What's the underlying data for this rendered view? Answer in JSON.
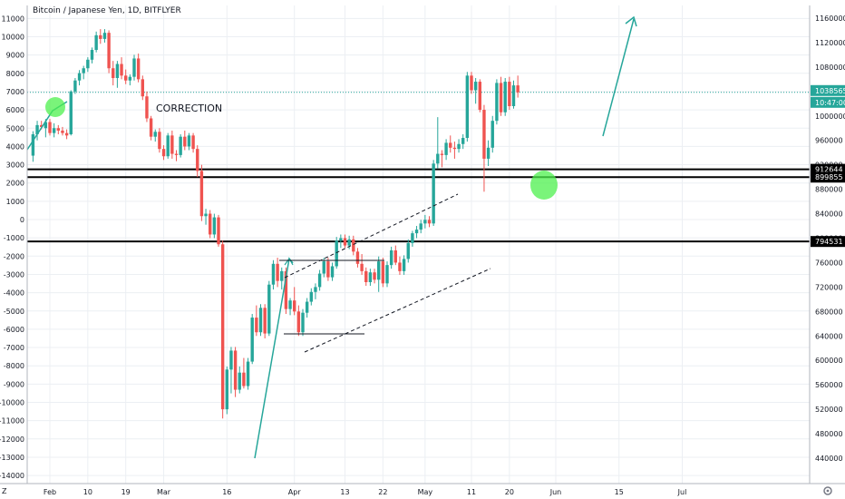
{
  "chart_data": {
    "type": "candlestick",
    "title": "Bitcoin / Japanese Yen, 1D, BITFLYER",
    "annotation": "CORRECTION",
    "scale_toggle": "Z",
    "colors": {
      "up": "#26a69a",
      "down": "#ef5350",
      "current": "#26a69a",
      "arrow": "#26a69a",
      "level": "#000000",
      "grid": "#eceff3",
      "circle": "#4ef04e"
    },
    "x_ticks": [
      "Feb",
      "10",
      "19",
      "Mar",
      "16",
      "Apr",
      "13",
      "22",
      "May",
      "11",
      "20",
      "Jun",
      "15",
      "Jul"
    ],
    "x_tick_days": [
      0,
      9,
      18,
      27,
      42,
      58,
      70,
      79,
      89,
      100,
      109,
      120,
      135,
      150
    ],
    "left_axis": {
      "min": -14000,
      "max": 12000,
      "ticks": [
        11000,
        10000,
        9000,
        8000,
        7000,
        6000,
        5000,
        4000,
        3000,
        2000,
        1000,
        0,
        -1000,
        -2000,
        -3000,
        -4000,
        -5000,
        -6000,
        -7000,
        -8000,
        -9000,
        -10000,
        -11000,
        -12000,
        -13000,
        -14000
      ]
    },
    "right_axis": {
      "min": 430000,
      "max": 1170000,
      "ticks": [
        1160000,
        1120000,
        1080000,
        1040000,
        1000000,
        960000,
        920000,
        880000,
        840000,
        800000,
        760000,
        720000,
        680000,
        640000,
        600000,
        560000,
        520000,
        480000,
        440000
      ]
    },
    "horizontal_levels": [
      912644,
      899855,
      794531
    ],
    "current_price": {
      "value": 1038565,
      "label": "1038565",
      "countdown": "10:47:00"
    },
    "level_labels": [
      "912644",
      "899855",
      "794531"
    ],
    "candles": [
      {
        "o": 935000,
        "h": 975000,
        "l": 925000,
        "c": 970000
      },
      {
        "o": 970000,
        "h": 992000,
        "l": 960000,
        "c": 985000
      },
      {
        "o": 985000,
        "h": 992000,
        "l": 978000,
        "c": 982000
      },
      {
        "o": 980000,
        "h": 995000,
        "l": 965000,
        "c": 990000
      },
      {
        "o": 990000,
        "h": 995000,
        "l": 968000,
        "c": 972000
      },
      {
        "o": 972000,
        "h": 988000,
        "l": 965000,
        "c": 980000
      },
      {
        "o": 980000,
        "h": 985000,
        "l": 970000,
        "c": 976000
      },
      {
        "o": 976000,
        "h": 982000,
        "l": 968000,
        "c": 972000
      },
      {
        "o": 972000,
        "h": 978000,
        "l": 962000,
        "c": 968000
      },
      {
        "o": 970000,
        "h": 1042000,
        "l": 968000,
        "c": 1040000
      },
      {
        "o": 1040000,
        "h": 1062000,
        "l": 1036000,
        "c": 1058000
      },
      {
        "o": 1058000,
        "h": 1075000,
        "l": 1050000,
        "c": 1070000
      },
      {
        "o": 1070000,
        "h": 1082000,
        "l": 1060000,
        "c": 1078000
      },
      {
        "o": 1078000,
        "h": 1096000,
        "l": 1072000,
        "c": 1092000
      },
      {
        "o": 1092000,
        "h": 1112000,
        "l": 1086000,
        "c": 1108000
      },
      {
        "o": 1108000,
        "h": 1138000,
        "l": 1104000,
        "c": 1132000
      },
      {
        "o": 1132000,
        "h": 1142000,
        "l": 1118000,
        "c": 1126000
      },
      {
        "o": 1126000,
        "h": 1142000,
        "l": 1120000,
        "c": 1136000
      },
      {
        "o": 1136000,
        "h": 1140000,
        "l": 1070000,
        "c": 1078000
      },
      {
        "o": 1078000,
        "h": 1090000,
        "l": 1050000,
        "c": 1062000
      },
      {
        "o": 1062000,
        "h": 1090000,
        "l": 1046000,
        "c": 1085000
      },
      {
        "o": 1085000,
        "h": 1096000,
        "l": 1060000,
        "c": 1066000
      },
      {
        "o": 1066000,
        "h": 1076000,
        "l": 1052000,
        "c": 1058000
      },
      {
        "o": 1058000,
        "h": 1068000,
        "l": 1050000,
        "c": 1064000
      },
      {
        "o": 1064000,
        "h": 1100000,
        "l": 1058000,
        "c": 1094000
      },
      {
        "o": 1094000,
        "h": 1102000,
        "l": 1055000,
        "c": 1060000
      },
      {
        "o": 1060000,
        "h": 1066000,
        "l": 1026000,
        "c": 1032000
      },
      {
        "o": 1032000,
        "h": 1040000,
        "l": 990000,
        "c": 996000
      },
      {
        "o": 996000,
        "h": 1000000,
        "l": 960000,
        "c": 966000
      },
      {
        "o": 966000,
        "h": 978000,
        "l": 958000,
        "c": 974000
      },
      {
        "o": 974000,
        "h": 980000,
        "l": 940000,
        "c": 946000
      },
      {
        "o": 946000,
        "h": 952000,
        "l": 928000,
        "c": 934000
      },
      {
        "o": 934000,
        "h": 972000,
        "l": 930000,
        "c": 968000
      },
      {
        "o": 968000,
        "h": 976000,
        "l": 930000,
        "c": 938000
      },
      {
        "o": 938000,
        "h": 944000,
        "l": 926000,
        "c": 936000
      },
      {
        "o": 936000,
        "h": 970000,
        "l": 932000,
        "c": 966000
      },
      {
        "o": 966000,
        "h": 976000,
        "l": 944000,
        "c": 950000
      },
      {
        "o": 950000,
        "h": 972000,
        "l": 944000,
        "c": 968000
      },
      {
        "o": 968000,
        "h": 972000,
        "l": 940000,
        "c": 946000
      },
      {
        "o": 946000,
        "h": 952000,
        "l": 900000,
        "c": 910000
      },
      {
        "o": 910000,
        "h": 920000,
        "l": 828000,
        "c": 836000
      },
      {
        "o": 836000,
        "h": 848000,
        "l": 822000,
        "c": 840000
      },
      {
        "o": 840000,
        "h": 846000,
        "l": 800000,
        "c": 806000
      },
      {
        "o": 806000,
        "h": 840000,
        "l": 800000,
        "c": 834000
      },
      {
        "o": 834000,
        "h": 838000,
        "l": 786000,
        "c": 790000
      },
      {
        "o": 790000,
        "h": 796000,
        "l": 505000,
        "c": 520000
      },
      {
        "o": 520000,
        "h": 590000,
        "l": 512000,
        "c": 585000
      },
      {
        "o": 585000,
        "h": 622000,
        "l": 546000,
        "c": 616000
      },
      {
        "o": 616000,
        "h": 622000,
        "l": 540000,
        "c": 552000
      },
      {
        "o": 552000,
        "h": 590000,
        "l": 546000,
        "c": 580000
      },
      {
        "o": 580000,
        "h": 604000,
        "l": 554000,
        "c": 558000
      },
      {
        "o": 558000,
        "h": 604000,
        "l": 552000,
        "c": 598000
      },
      {
        "o": 598000,
        "h": 676000,
        "l": 594000,
        "c": 670000
      },
      {
        "o": 670000,
        "h": 690000,
        "l": 640000,
        "c": 646000
      },
      {
        "o": 646000,
        "h": 692000,
        "l": 640000,
        "c": 686000
      },
      {
        "o": 686000,
        "h": 692000,
        "l": 636000,
        "c": 644000
      },
      {
        "o": 644000,
        "h": 730000,
        "l": 640000,
        "c": 724000
      },
      {
        "o": 724000,
        "h": 764000,
        "l": 716000,
        "c": 758000
      },
      {
        "o": 758000,
        "h": 768000,
        "l": 720000,
        "c": 730000
      },
      {
        "o": 730000,
        "h": 752000,
        "l": 716000,
        "c": 746000
      },
      {
        "o": 746000,
        "h": 752000,
        "l": 676000,
        "c": 684000
      },
      {
        "o": 684000,
        "h": 702000,
        "l": 674000,
        "c": 698000
      },
      {
        "o": 698000,
        "h": 720000,
        "l": 674000,
        "c": 680000
      },
      {
        "o": 680000,
        "h": 690000,
        "l": 640000,
        "c": 646000
      },
      {
        "o": 646000,
        "h": 684000,
        "l": 640000,
        "c": 678000
      },
      {
        "o": 678000,
        "h": 702000,
        "l": 670000,
        "c": 696000
      },
      {
        "o": 696000,
        "h": 718000,
        "l": 690000,
        "c": 712000
      },
      {
        "o": 712000,
        "h": 726000,
        "l": 700000,
        "c": 720000
      },
      {
        "o": 720000,
        "h": 748000,
        "l": 714000,
        "c": 742000
      },
      {
        "o": 742000,
        "h": 768000,
        "l": 736000,
        "c": 762000
      },
      {
        "o": 762000,
        "h": 768000,
        "l": 730000,
        "c": 736000
      },
      {
        "o": 736000,
        "h": 760000,
        "l": 730000,
        "c": 754000
      },
      {
        "o": 754000,
        "h": 802000,
        "l": 750000,
        "c": 796000
      },
      {
        "o": 796000,
        "h": 806000,
        "l": 784000,
        "c": 800000
      },
      {
        "o": 800000,
        "h": 806000,
        "l": 784000,
        "c": 788000
      },
      {
        "o": 788000,
        "h": 804000,
        "l": 782000,
        "c": 798000
      },
      {
        "o": 798000,
        "h": 804000,
        "l": 772000,
        "c": 778000
      },
      {
        "o": 778000,
        "h": 784000,
        "l": 752000,
        "c": 758000
      },
      {
        "o": 758000,
        "h": 774000,
        "l": 740000,
        "c": 746000
      },
      {
        "o": 746000,
        "h": 752000,
        "l": 722000,
        "c": 728000
      },
      {
        "o": 728000,
        "h": 750000,
        "l": 722000,
        "c": 744000
      },
      {
        "o": 744000,
        "h": 750000,
        "l": 726000,
        "c": 732000
      },
      {
        "o": 732000,
        "h": 770000,
        "l": 712000,
        "c": 762000
      },
      {
        "o": 762000,
        "h": 768000,
        "l": 720000,
        "c": 726000
      },
      {
        "o": 726000,
        "h": 762000,
        "l": 720000,
        "c": 756000
      },
      {
        "o": 756000,
        "h": 786000,
        "l": 750000,
        "c": 780000
      },
      {
        "o": 780000,
        "h": 788000,
        "l": 756000,
        "c": 760000
      },
      {
        "o": 760000,
        "h": 770000,
        "l": 740000,
        "c": 746000
      },
      {
        "o": 746000,
        "h": 772000,
        "l": 740000,
        "c": 766000
      },
      {
        "o": 766000,
        "h": 798000,
        "l": 760000,
        "c": 792000
      },
      {
        "o": 792000,
        "h": 812000,
        "l": 786000,
        "c": 808000
      },
      {
        "o": 808000,
        "h": 820000,
        "l": 800000,
        "c": 814000
      },
      {
        "o": 814000,
        "h": 830000,
        "l": 808000,
        "c": 824000
      },
      {
        "o": 824000,
        "h": 838000,
        "l": 816000,
        "c": 830000
      },
      {
        "o": 830000,
        "h": 836000,
        "l": 818000,
        "c": 824000
      },
      {
        "o": 824000,
        "h": 928000,
        "l": 820000,
        "c": 922000
      },
      {
        "o": 922000,
        "h": 998000,
        "l": 914000,
        "c": 938000
      },
      {
        "o": 938000,
        "h": 944000,
        "l": 916000,
        "c": 936000
      },
      {
        "o": 936000,
        "h": 962000,
        "l": 928000,
        "c": 956000
      },
      {
        "o": 956000,
        "h": 968000,
        "l": 940000,
        "c": 948000
      },
      {
        "o": 948000,
        "h": 958000,
        "l": 930000,
        "c": 946000
      },
      {
        "o": 946000,
        "h": 962000,
        "l": 940000,
        "c": 954000
      },
      {
        "o": 954000,
        "h": 970000,
        "l": 946000,
        "c": 964000
      },
      {
        "o": 964000,
        "h": 1072000,
        "l": 958000,
        "c": 1066000
      },
      {
        "o": 1066000,
        "h": 1072000,
        "l": 1036000,
        "c": 1042000
      },
      {
        "o": 1042000,
        "h": 1062000,
        "l": 1020000,
        "c": 1056000
      },
      {
        "o": 1056000,
        "h": 1060000,
        "l": 1006000,
        "c": 1010000
      },
      {
        "o": 1010000,
        "h": 1018000,
        "l": 876000,
        "c": 930000
      },
      {
        "o": 930000,
        "h": 960000,
        "l": 918000,
        "c": 948000
      },
      {
        "o": 948000,
        "h": 1000000,
        "l": 940000,
        "c": 992000
      },
      {
        "o": 992000,
        "h": 1060000,
        "l": 986000,
        "c": 1054000
      },
      {
        "o": 1054000,
        "h": 1064000,
        "l": 1000000,
        "c": 1006000
      },
      {
        "o": 1006000,
        "h": 1062000,
        "l": 1000000,
        "c": 1056000
      },
      {
        "o": 1056000,
        "h": 1064000,
        "l": 1010000,
        "c": 1016000
      },
      {
        "o": 1016000,
        "h": 1058000,
        "l": 1012000,
        "c": 1050000
      },
      {
        "o": 1050000,
        "h": 1066000,
        "l": 1030000,
        "c": 1038565
      }
    ]
  }
}
